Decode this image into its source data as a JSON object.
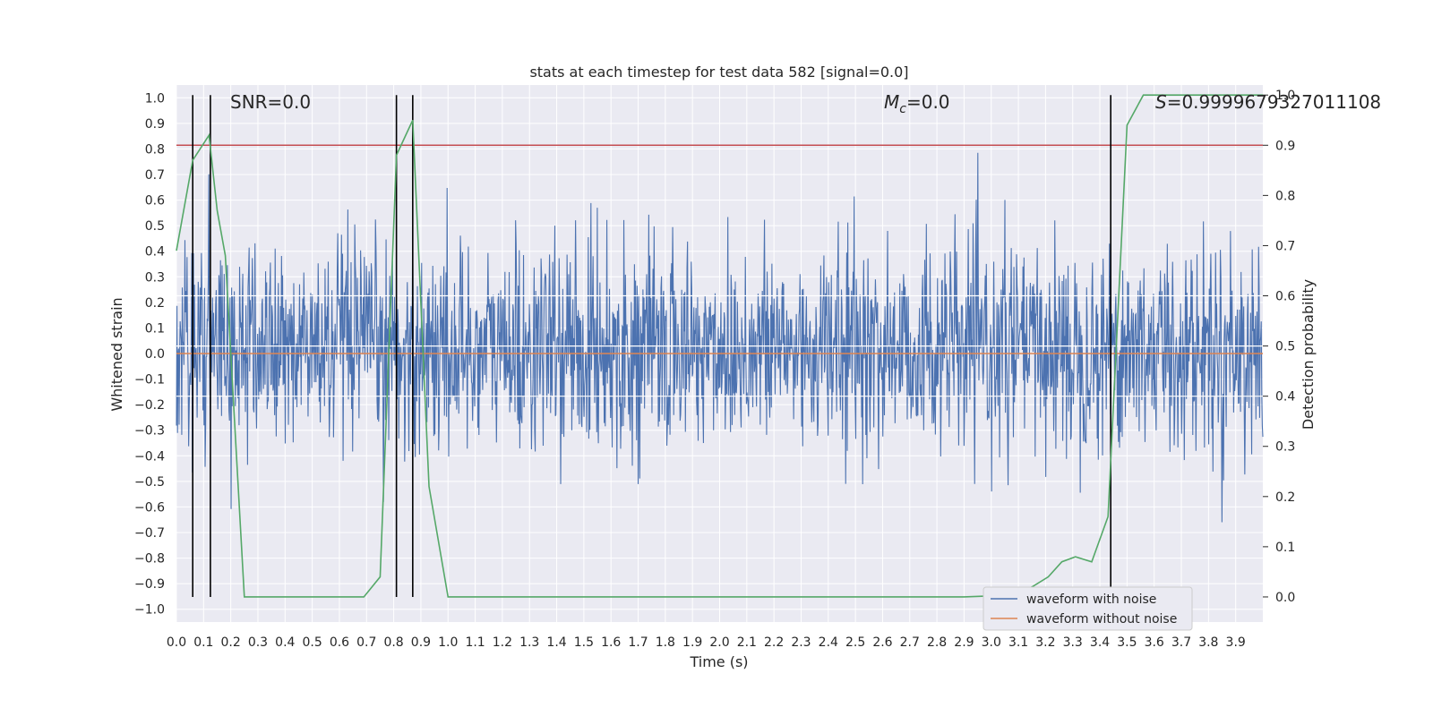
{
  "chart_data": {
    "type": "line",
    "title": "stats at each timestep for test data 582 [signal=0.0]",
    "xlabel": "Time (s)",
    "ylabel": "Whitened strain",
    "ylabel_right": "Detection probability",
    "xlim": [
      0.0,
      4.0
    ],
    "ylim": [
      -1.05,
      1.05
    ],
    "ylim_right": [
      -0.05,
      1.02
    ],
    "x_ticks": [
      "0.0",
      "0.1",
      "0.2",
      "0.3",
      "0.4",
      "0.5",
      "0.6",
      "0.7",
      "0.8",
      "0.9",
      "1.0",
      "1.1",
      "1.2",
      "1.3",
      "1.4",
      "1.5",
      "1.6",
      "1.7",
      "1.8",
      "1.9",
      "2.0",
      "2.1",
      "2.2",
      "2.3",
      "2.4",
      "2.5",
      "2.6",
      "2.7",
      "2.8",
      "2.9",
      "3.0",
      "3.1",
      "3.2",
      "3.3",
      "3.4",
      "3.5",
      "3.6",
      "3.7",
      "3.8",
      "3.9"
    ],
    "y_ticks": [
      "1.0",
      "0.9",
      "0.8",
      "0.7",
      "0.6",
      "0.5",
      "0.4",
      "0.3",
      "0.2",
      "0.1",
      "0.0",
      "-0.1",
      "-0.2",
      "-0.3",
      "-0.4",
      "-0.5",
      "-0.6",
      "-0.7",
      "-0.8",
      "-0.9",
      "-1.0"
    ],
    "y_ticks_right": [
      "1.0",
      "0.9",
      "0.8",
      "0.7",
      "0.6",
      "0.5",
      "0.4",
      "0.3",
      "0.2",
      "0.1",
      "0.0"
    ],
    "grid": true,
    "legend_position": "bottom-right",
    "annotations": {
      "snr": "SNR=0.0",
      "mc_symbol": "M",
      "mc_subscript": "c",
      "mc_value": "=0.0",
      "s_symbol": "S",
      "s_value": "=0.9999679327011108"
    },
    "series": [
      {
        "name": "waveform with noise",
        "color": "#4c72b0",
        "axis": "left",
        "note": "dense noise trace, roughly within [-0.94, 1.0]; peaks reproduced deterministically"
      },
      {
        "name": "waveform without noise",
        "color": "#dd8452",
        "axis": "left",
        "constant": 0.0
      },
      {
        "name": "detection probability",
        "color": "#55a868",
        "axis": "right",
        "x": [
          0.0,
          0.06,
          0.12,
          0.15,
          0.18,
          0.25,
          0.31,
          0.37,
          0.43,
          0.5,
          0.56,
          0.62,
          0.69,
          0.75,
          0.81,
          0.87,
          0.93,
          1.0,
          1.06,
          1.5,
          2.0,
          2.5,
          2.9,
          3.0,
          3.1,
          3.15,
          3.21,
          3.26,
          3.31,
          3.37,
          3.43,
          3.5,
          3.56,
          3.62,
          3.68,
          3.74,
          3.8,
          3.86,
          3.92,
          4.0
        ],
        "y": [
          0.69,
          0.87,
          0.92,
          0.77,
          0.68,
          0.0,
          0.0,
          0.0,
          0.0,
          0.0,
          0.0,
          0.0,
          0.0,
          0.04,
          0.88,
          0.95,
          0.22,
          0.0,
          0.0,
          0.0,
          0.0,
          0.0,
          0.0,
          0.002,
          0.008,
          0.02,
          0.04,
          0.07,
          0.08,
          0.07,
          0.16,
          0.94,
          1.0,
          1.0,
          1.0,
          1.0,
          1.0,
          1.0,
          1.0,
          1.0
        ]
      }
    ],
    "threshold_line": {
      "value_right": 0.9,
      "color": "#c44e52"
    },
    "vertical_markers": {
      "x": [
        0.06,
        0.125,
        0.81,
        0.87,
        3.44
      ],
      "color": "#000000"
    },
    "right_grid_values": [
      0.6,
      0.5,
      0.4
    ],
    "noise_bounds": [
      -0.94,
      1.0
    ]
  }
}
